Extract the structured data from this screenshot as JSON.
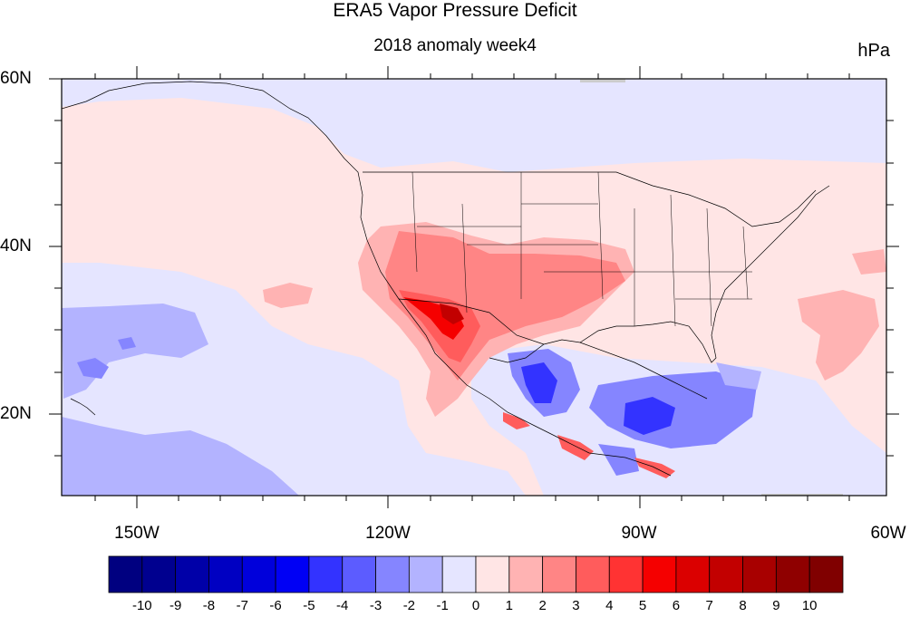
{
  "title": "ERA5 Vapor Pressure Deficit",
  "subtitle": "2018 anomaly week4",
  "units": "hPa",
  "lat_labels": [
    "60N",
    "40N",
    "20N"
  ],
  "lon_labels": [
    "150W",
    "120W",
    "90W",
    "60W"
  ],
  "colors": {
    "frame": "#000000",
    "background": "#ffffff"
  },
  "colorbar": {
    "labels": [
      "-10",
      "-9",
      "-8",
      "-7",
      "-6",
      "-5",
      "-4",
      "-3",
      "-2",
      "-1",
      "0",
      "1",
      "2",
      "3",
      "4",
      "5",
      "6",
      "7",
      "8",
      "9",
      "10"
    ],
    "colors": [
      "#000080",
      "#00008f",
      "#0000a8",
      "#0000c2",
      "#0000db",
      "#0000f5",
      "#3333ff",
      "#5c5cff",
      "#8585ff",
      "#b3b3ff",
      "#e5e5ff",
      "#ffe5e5",
      "#ffb3b3",
      "#ff8585",
      "#ff5c5c",
      "#ff3333",
      "#f50000",
      "#db0000",
      "#c20000",
      "#a80000",
      "#8f0000",
      "#800000"
    ]
  },
  "map": {
    "extent": {
      "lon_min": -160,
      "lon_max": -60,
      "lat_min": 10,
      "lat_max": 60
    },
    "description_tags": [
      "vapor-pressure-deficit-anomaly",
      "north-america"
    ]
  }
}
